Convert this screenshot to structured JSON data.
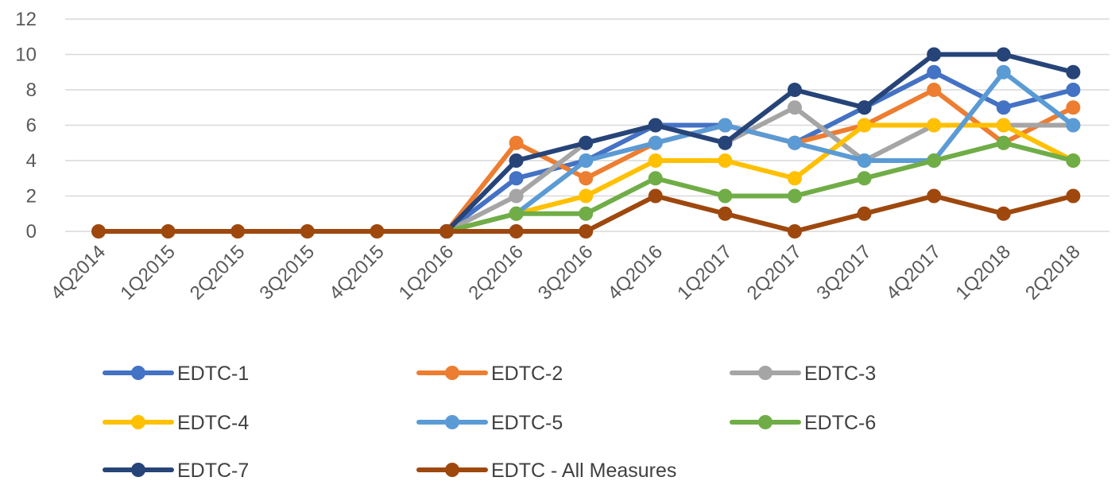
{
  "chart_data": {
    "type": "line",
    "title": "",
    "xlabel": "",
    "ylabel": "",
    "ylim": [
      0,
      12
    ],
    "yticks": [
      0,
      2,
      4,
      6,
      8,
      10,
      12
    ],
    "grid": "horizontal",
    "legend_placement": "bottom",
    "categories": [
      "4Q2014",
      "1Q2015",
      "2Q2015",
      "3Q2015",
      "4Q2015",
      "1Q2016",
      "2Q2016",
      "3Q2016",
      "4Q2016",
      "1Q2017",
      "2Q2017",
      "3Q2017",
      "4Q2017",
      "1Q2018",
      "2Q2018"
    ],
    "series": [
      {
        "name": "EDTC-1",
        "color": "#4472c4",
        "values": [
          null,
          null,
          null,
          null,
          null,
          0,
          3,
          4,
          6,
          6,
          5,
          7,
          9,
          7,
          8
        ]
      },
      {
        "name": "EDTC-2",
        "color": "#ed7d31",
        "values": [
          null,
          null,
          null,
          null,
          null,
          0,
          5,
          3,
          5,
          6,
          5,
          6,
          8,
          5,
          7
        ]
      },
      {
        "name": "EDTC-3",
        "color": "#a5a5a5",
        "values": [
          null,
          null,
          null,
          null,
          null,
          0,
          2,
          5,
          6,
          5,
          7,
          4,
          6,
          6,
          6
        ]
      },
      {
        "name": "EDTC-4",
        "color": "#ffc000",
        "values": [
          null,
          null,
          null,
          null,
          null,
          0,
          1,
          2,
          4,
          4,
          3,
          6,
          6,
          6,
          4
        ]
      },
      {
        "name": "EDTC-5",
        "color": "#5b9bd5",
        "values": [
          null,
          null,
          null,
          null,
          null,
          0,
          1,
          4,
          5,
          6,
          5,
          4,
          4,
          9,
          6
        ]
      },
      {
        "name": "EDTC-6",
        "color": "#70ad47",
        "values": [
          null,
          null,
          null,
          null,
          null,
          0,
          1,
          1,
          3,
          2,
          2,
          3,
          4,
          5,
          4
        ]
      },
      {
        "name": "EDTC-7",
        "color": "#264478",
        "values": [
          null,
          null,
          null,
          null,
          null,
          0,
          4,
          5,
          6,
          5,
          8,
          7,
          10,
          10,
          9
        ]
      },
      {
        "name": "EDTC - All Measures",
        "color": "#9e480e",
        "values": [
          0,
          0,
          0,
          0,
          0,
          0,
          0,
          0,
          2,
          1,
          0,
          1,
          2,
          1,
          2
        ]
      }
    ]
  }
}
